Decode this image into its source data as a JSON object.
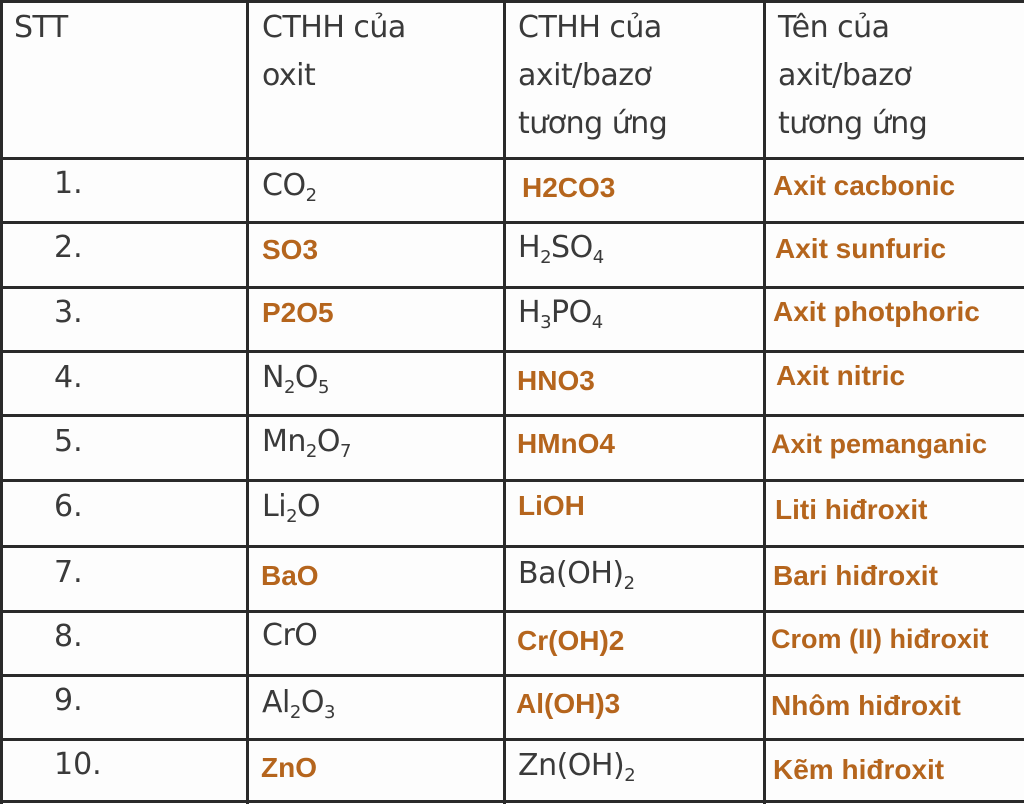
{
  "table": {
    "headers": [
      "STT",
      "CTHH của oxit",
      "CTHH của axit/bazơ tương ứng",
      "Tên của axit/bazơ tương ứng"
    ],
    "rows": [
      {
        "stt": "1.",
        "oxide": "CO2",
        "compound": "H2CO3",
        "name": "Axit cacbonic"
      },
      {
        "stt": "2.",
        "oxide": "SO3",
        "compound": "H2SO4",
        "name": "Axit sunfuric"
      },
      {
        "stt": "3.",
        "oxide": "P2O5",
        "compound": "H3PO4",
        "name": "Axit photphoric"
      },
      {
        "stt": "4.",
        "oxide": "N2O5",
        "compound": "HNO3",
        "name": "Axit nitric"
      },
      {
        "stt": "5.",
        "oxide": "Mn2O7",
        "compound": "HMnO4",
        "name": "Axit pemanganic"
      },
      {
        "stt": "6.",
        "oxide": "Li2O",
        "compound": "LiOH",
        "name": "Liti hiđroxit"
      },
      {
        "stt": "7.",
        "oxide": "BaO",
        "compound": "Ba(OH)2",
        "name": "Bari hiđroxit"
      },
      {
        "stt": "8.",
        "oxide": "CrO",
        "compound": "Cr(OH)2",
        "name": "Crom (II) hiđroxit"
      },
      {
        "stt": "9.",
        "oxide": "Al2O3",
        "compound": "Al(OH)3",
        "name": "Nhôm hiđroxit"
      },
      {
        "stt": "10.",
        "oxide": "ZnO",
        "compound": "Zn(OH)2",
        "name": "Kẽm hiđroxit"
      }
    ]
  },
  "colors": {
    "handwritten_text": "#3a3a3a",
    "typed_answer_text": "#b5651d",
    "grid_lines": "#2a2a2a"
  }
}
